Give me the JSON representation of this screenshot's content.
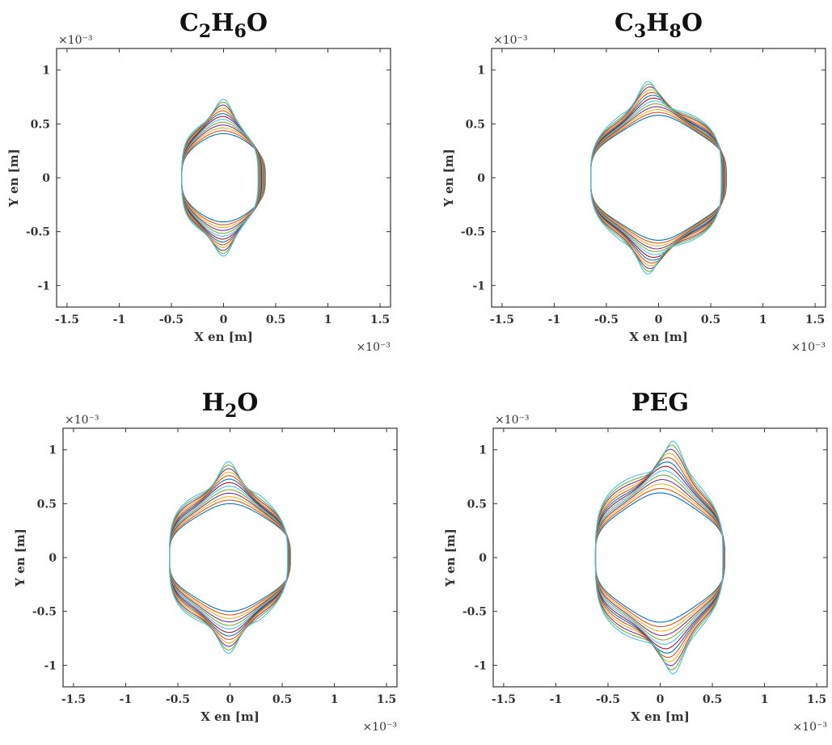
{
  "chart_data": [
    {
      "type": "line",
      "title": "C2H6O",
      "title_parts": [
        [
          "C",
          ""
        ],
        [
          "2",
          "sub"
        ],
        [
          "H",
          ""
        ],
        [
          "6",
          "sub"
        ],
        [
          "O",
          ""
        ]
      ],
      "xlabel": "X en [m]",
      "ylabel": "Y en [m]",
      "x_exponent": "×10⁻³",
      "y_exponent": "×10⁻³",
      "xlim": [
        -1.6,
        1.6
      ],
      "ylim": [
        -1.2,
        1.2
      ],
      "xticks": [
        "-1.5",
        "-1",
        "-0.5",
        "0",
        "0.5",
        "1",
        "1.5"
      ],
      "yticks": [
        "-1",
        "-0.5",
        "0",
        "0.5",
        "1"
      ],
      "curves": {
        "count": 13,
        "xmin": -0.4,
        "xmax_start": 0.4,
        "xmax_end": 0.33,
        "xflat_end": 0.02,
        "ymax_start": 0.41,
        "ymax_end": 0.73,
        "peak_shift": 0.04
      }
    },
    {
      "type": "line",
      "title": "C3H8O",
      "title_parts": [
        [
          "C",
          ""
        ],
        [
          "3",
          "sub"
        ],
        [
          "H",
          ""
        ],
        [
          "8",
          "sub"
        ],
        [
          "O",
          ""
        ]
      ],
      "xlabel": "X en [m]",
      "ylabel": "Y en [m]",
      "x_exponent": "×10⁻³",
      "y_exponent": "×10⁻³",
      "xlim": [
        -1.6,
        1.6
      ],
      "ylim": [
        -1.2,
        1.2
      ],
      "xticks": [
        "-1.5",
        "-1",
        "-0.5",
        "0",
        "0.5",
        "1",
        "1.5"
      ],
      "yticks": [
        "-1",
        "-0.5",
        "0",
        "0.5",
        "1"
      ],
      "curves": {
        "count": 13,
        "xmin": -0.65,
        "xmax_start": 0.65,
        "xmax_end": 0.6,
        "xflat_end": -0.35,
        "ymax_start": 0.58,
        "ymax_end": 0.9,
        "peak_shift": -0.08
      }
    },
    {
      "type": "line",
      "title": "H2O",
      "title_parts": [
        [
          "H",
          ""
        ],
        [
          "2",
          "sub"
        ],
        [
          "O",
          ""
        ]
      ],
      "xlabel": "X en [m]",
      "ylabel": "Y en [m]",
      "x_exponent": "×10⁻³",
      "y_exponent": "×10⁻³",
      "xlim": [
        -1.6,
        1.6
      ],
      "ylim": [
        -1.2,
        1.2
      ],
      "xticks": [
        "-1.5",
        "-1",
        "-0.5",
        "0",
        "0.5",
        "1",
        "1.5"
      ],
      "yticks": [
        "-1",
        "-0.5",
        "0",
        "0.5",
        "1"
      ],
      "curves": {
        "count": 13,
        "xmin": -0.58,
        "xmax_start": 0.58,
        "xmax_end": 0.55,
        "xflat_end": 0.28,
        "ymax_start": 0.5,
        "ymax_end": 0.89,
        "peak_shift": 0.0
      }
    },
    {
      "type": "line",
      "title": "PEG",
      "title_parts": [
        [
          "PEG",
          ""
        ]
      ],
      "xlabel": "X en [m]",
      "ylabel": "Y en [m]",
      "x_exponent": "×10⁻³",
      "y_exponent": "×10⁻³",
      "xlim": [
        -1.6,
        1.6
      ],
      "ylim": [
        -1.2,
        1.2
      ],
      "xticks": [
        "-1.5",
        "-1",
        "-0.5",
        "0",
        "0.5",
        "1",
        "1.5"
      ],
      "yticks": [
        "-1",
        "-0.5",
        "0",
        "0.5",
        "1"
      ],
      "curves": {
        "count": 13,
        "xmin": -0.62,
        "xmax_start": 0.62,
        "xmax_end": 0.6,
        "xflat_end": 0.33,
        "ymax_start": 0.6,
        "ymax_end": 1.1,
        "peak_shift": 0.14
      }
    }
  ],
  "colors": [
    "#0072BD",
    "#D95319",
    "#EDB120",
    "#7E2F8E",
    "#77AC30",
    "#4DBEEE",
    "#A2142F",
    "#0072BD",
    "#D95319",
    "#EDB120",
    "#7E2F8E",
    "#77AC30",
    "#4DBEEE"
  ]
}
